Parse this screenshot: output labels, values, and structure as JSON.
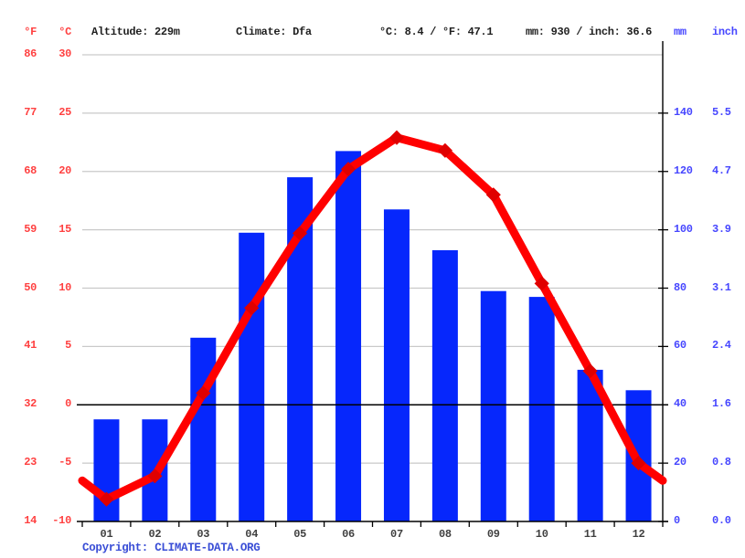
{
  "header": {
    "left_unit_f": "°F",
    "left_unit_c": "°C",
    "altitude": "Altitude: 229m",
    "climate": "Climate: Dfa",
    "temp_summary": "°C: 8.4 / °F: 47.1",
    "precip_summary": "mm: 930 / inch: 36.6",
    "right_unit_mm": "mm",
    "right_unit_inch": "inch"
  },
  "footer": {
    "copyright_label": "Copyright:",
    "copyright_link": "CLIMATE-DATA.ORG"
  },
  "colors": {
    "bar": "#0627fc",
    "line": "#ff0000",
    "marker": "#e00000",
    "grid": "#c9c9c9",
    "axis": "#000000",
    "temp_label": "#ff4040",
    "precip_label": "#4646ff",
    "month_label": "#3f3f3f",
    "header_text": "#1f1f1f",
    "copyright": "#3a4ed6"
  },
  "chart_data": {
    "type": "bar",
    "title": "Climate graph (climate-data.org style): monthly precipitation bars and temperature line",
    "categories": [
      "01",
      "02",
      "03",
      "04",
      "05",
      "06",
      "07",
      "08",
      "09",
      "10",
      "11",
      "12"
    ],
    "series": [
      {
        "name": "Precipitation (mm)",
        "kind": "bar",
        "values": [
          35,
          35,
          63,
          99,
          118,
          127,
          107,
          93,
          79,
          77,
          52,
          45
        ]
      },
      {
        "name": "Temperature (°C)",
        "kind": "line",
        "values": [
          -8.1,
          -6.1,
          1.0,
          8.3,
          14.7,
          20.2,
          22.9,
          21.8,
          18.0,
          10.4,
          2.9,
          -5.0
        ]
      }
    ],
    "temp_axis": {
      "c_ticks": [
        30,
        25,
        20,
        15,
        10,
        5,
        0,
        -5,
        -10
      ],
      "f_ticks": [
        86,
        77,
        68,
        59,
        50,
        41,
        32,
        23,
        14
      ],
      "c_range": [
        -10,
        30
      ]
    },
    "precip_axis": {
      "mm_ticks": [
        140,
        120,
        100,
        80,
        60,
        40,
        20,
        0
      ],
      "inch_ticks": [
        "5.5",
        "4.7",
        "3.9",
        "3.1",
        "2.4",
        "1.6",
        "0.8",
        "0.0"
      ],
      "mm_range": [
        0,
        160
      ]
    },
    "line_edge_value": -6.5,
    "grid": true,
    "legend": false
  }
}
